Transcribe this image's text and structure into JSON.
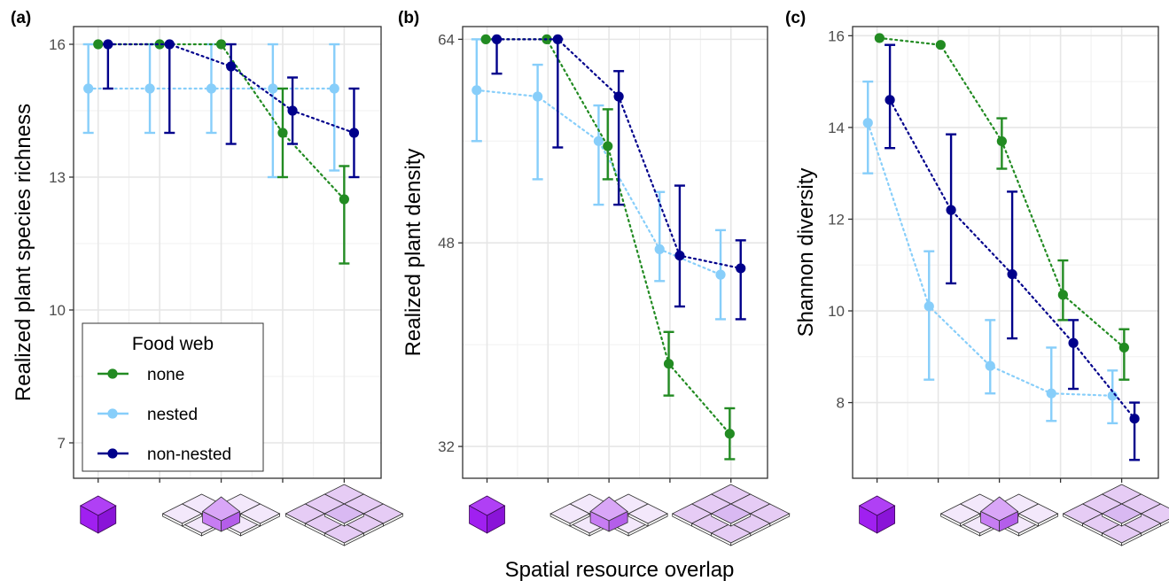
{
  "colors": {
    "none": "#228B22",
    "nested": "#87CEFA",
    "non-nested": "#00008B",
    "cube": "#A020F0",
    "tile": "#E6CCF5"
  },
  "x_title": "Spatial resource overlap",
  "legend": {
    "title": "Food web",
    "entries": [
      {
        "key": "none",
        "label": "none"
      },
      {
        "key": "nested",
        "label": "nested"
      },
      {
        "key": "non-nested",
        "label": "non-nested"
      }
    ]
  },
  "chart_data": [
    {
      "panel": "(a)",
      "type": "line",
      "ylabel": "Realized plant species richness",
      "ylim": [
        6.2,
        16.4
      ],
      "yticks": [
        7,
        10,
        13,
        16
      ],
      "x": [
        1,
        2,
        3,
        4,
        5
      ],
      "xlim": [
        0.6,
        5.6
      ],
      "series": [
        {
          "name": "none",
          "y": [
            16,
            16,
            16,
            14,
            12.5
          ],
          "lo": [
            16,
            16,
            16,
            13,
            11.05
          ],
          "hi": [
            16,
            16,
            16,
            15,
            13.25
          ]
        },
        {
          "name": "nested",
          "y": [
            15,
            15,
            15,
            15,
            15
          ],
          "lo": [
            14,
            14,
            14,
            13,
            13.15
          ],
          "hi": [
            16,
            16,
            16,
            16,
            16
          ]
        },
        {
          "name": "non-nested",
          "y": [
            16,
            16,
            15.5,
            14.5,
            14
          ],
          "lo": [
            15,
            14,
            13.75,
            13.75,
            13
          ],
          "hi": [
            16,
            16,
            16,
            15.25,
            15
          ]
        }
      ]
    },
    {
      "panel": "(b)",
      "type": "line",
      "ylabel": "Realized plant density",
      "ylim": [
        29.5,
        65
      ],
      "yticks": [
        32,
        48,
        64
      ],
      "x": [
        1,
        2,
        3,
        4,
        5
      ],
      "xlim": [
        0.6,
        5.6
      ],
      "series": [
        {
          "name": "none",
          "y": [
            64,
            64,
            55.6,
            38.5,
            33
          ],
          "lo": [
            64,
            64,
            53,
            36,
            31
          ],
          "hi": [
            64,
            64,
            58.5,
            41,
            35
          ]
        },
        {
          "name": "nested",
          "y": [
            60,
            59.5,
            56,
            47.5,
            45.5
          ],
          "lo": [
            56,
            53,
            51,
            45,
            42
          ],
          "hi": [
            64,
            62,
            58.8,
            52,
            49
          ]
        },
        {
          "name": "non-nested",
          "y": [
            64,
            64,
            59.5,
            47,
            46
          ],
          "lo": [
            61.3,
            55.5,
            51,
            43,
            42
          ],
          "hi": [
            64,
            64,
            61.5,
            52.5,
            48.2
          ]
        }
      ]
    },
    {
      "panel": "(c)",
      "type": "line",
      "ylabel": "Shannon diversity",
      "ylim": [
        6.35,
        16.2
      ],
      "yticks": [
        8,
        10,
        12,
        14,
        16
      ],
      "x": [
        1,
        2,
        3,
        4,
        5
      ],
      "xlim": [
        0.6,
        5.6
      ],
      "series": [
        {
          "name": "none",
          "y": [
            15.95,
            15.8,
            13.7,
            10.35,
            9.2
          ],
          "lo": [
            15.95,
            15.8,
            13.1,
            9.8,
            8.5
          ],
          "hi": [
            15.95,
            15.8,
            14.2,
            11.1,
            9.6
          ]
        },
        {
          "name": "nested",
          "y": [
            14.1,
            10.1,
            8.8,
            8.2,
            8.15
          ],
          "lo": [
            13,
            8.5,
            8.2,
            7.6,
            7.55
          ],
          "hi": [
            15,
            11.3,
            9.8,
            9.2,
            8.7
          ]
        },
        {
          "name": "non-nested",
          "y": [
            14.6,
            12.2,
            10.8,
            9.3,
            7.65
          ],
          "lo": [
            13.55,
            10.6,
            9.4,
            8.3,
            6.75
          ],
          "hi": [
            15.8,
            13.85,
            12.6,
            9.8,
            8
          ]
        }
      ]
    }
  ]
}
